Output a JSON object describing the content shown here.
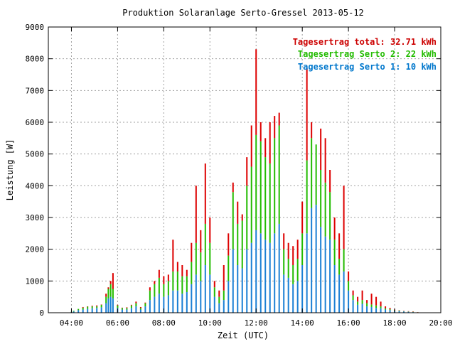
{
  "chart_data": {
    "type": "bar",
    "title": "Produktion Solaranlage Serto-Gressel 2013-05-12",
    "xlabel": "Zeit (UTC)",
    "ylabel": "Leistung [W]",
    "xlim": [
      3.0,
      20.0
    ],
    "ylim": [
      0,
      9000
    ],
    "x_ticks": [
      4,
      6,
      8,
      10,
      12,
      14,
      16,
      18,
      20
    ],
    "x_tick_labels": [
      "04:00",
      "06:00",
      "08:00",
      "10:00",
      "12:00",
      "14:00",
      "16:00",
      "18:00",
      "20:00"
    ],
    "y_ticks": [
      0,
      1000,
      2000,
      3000,
      4000,
      5000,
      6000,
      7000,
      8000,
      9000
    ],
    "y_tick_labels": [
      "0",
      "1000",
      "2000",
      "3000",
      "4000",
      "5000",
      "6000",
      "7000",
      "8000",
      "9000"
    ],
    "grid": true,
    "stacked": true,
    "legend_position": "top-right",
    "legend": [
      {
        "text": "Tagesertrag total: 32.71 kWh",
        "color": "#cc0000"
      },
      {
        "text": "Tagesertrag Serto 2: 22 kWh",
        "color": "#22bb00"
      },
      {
        "text": "Tagesertrag Serto 1: 10 kWh",
        "color": "#0077cc"
      }
    ],
    "series": [
      {
        "name": "Serto 1",
        "color": "#1a7fd4",
        "values": [
          [
            4.0,
            20
          ],
          [
            4.1,
            40
          ],
          [
            4.3,
            80
          ],
          [
            4.5,
            100
          ],
          [
            4.7,
            120
          ],
          [
            4.9,
            140
          ],
          [
            5.1,
            150
          ],
          [
            5.3,
            170
          ],
          [
            5.5,
            300
          ],
          [
            5.6,
            450
          ],
          [
            5.7,
            500
          ],
          [
            5.8,
            450
          ],
          [
            6.0,
            150
          ],
          [
            6.2,
            100
          ],
          [
            6.4,
            100
          ],
          [
            6.6,
            150
          ],
          [
            6.8,
            200
          ],
          [
            7.0,
            100
          ],
          [
            7.2,
            200
          ],
          [
            7.4,
            400
          ],
          [
            7.6,
            500
          ],
          [
            7.8,
            600
          ],
          [
            8.0,
            500
          ],
          [
            8.2,
            550
          ],
          [
            8.4,
            700
          ],
          [
            8.6,
            700
          ],
          [
            8.8,
            600
          ],
          [
            9.0,
            650
          ],
          [
            9.2,
            900
          ],
          [
            9.4,
            1200
          ],
          [
            9.6,
            1000
          ],
          [
            9.8,
            1500
          ],
          [
            10.0,
            1200
          ],
          [
            10.2,
            500
          ],
          [
            10.4,
            300
          ],
          [
            10.6,
            400
          ],
          [
            10.8,
            1000
          ],
          [
            11.0,
            2000
          ],
          [
            11.2,
            1500
          ],
          [
            11.4,
            1400
          ],
          [
            11.6,
            2000
          ],
          [
            11.8,
            2200
          ],
          [
            12.0,
            2600
          ],
          [
            12.2,
            2500
          ],
          [
            12.4,
            2300
          ],
          [
            12.6,
            2200
          ],
          [
            12.8,
            2500
          ],
          [
            13.0,
            2800
          ],
          [
            13.2,
            1200
          ],
          [
            13.4,
            1100
          ],
          [
            13.6,
            900
          ],
          [
            13.8,
            1000
          ],
          [
            14.0,
            1500
          ],
          [
            14.2,
            2500
          ],
          [
            14.4,
            3300
          ],
          [
            14.6,
            3400
          ],
          [
            14.8,
            2700
          ],
          [
            15.0,
            2400
          ],
          [
            15.2,
            2300
          ],
          [
            15.4,
            1500
          ],
          [
            15.6,
            1200
          ],
          [
            15.8,
            1300
          ],
          [
            16.0,
            700
          ],
          [
            16.2,
            400
          ],
          [
            16.4,
            250
          ],
          [
            16.6,
            280
          ],
          [
            16.8,
            200
          ],
          [
            17.0,
            180
          ],
          [
            17.2,
            150
          ],
          [
            17.4,
            140
          ],
          [
            17.6,
            100
          ],
          [
            17.8,
            80
          ],
          [
            18.0,
            60
          ],
          [
            18.2,
            50
          ],
          [
            18.4,
            40
          ],
          [
            18.6,
            30
          ],
          [
            18.8,
            20
          ],
          [
            19.0,
            10
          ]
        ]
      },
      {
        "name": "Serto 2",
        "color": "#22bb00",
        "values": [
          [
            4.0,
            10
          ],
          [
            4.1,
            20
          ],
          [
            4.3,
            40
          ],
          [
            4.5,
            60
          ],
          [
            4.7,
            70
          ],
          [
            4.9,
            60
          ],
          [
            5.1,
            50
          ],
          [
            5.3,
            80
          ],
          [
            5.5,
            200
          ],
          [
            5.6,
            300
          ],
          [
            5.7,
            400
          ],
          [
            5.8,
            300
          ],
          [
            6.0,
            80
          ],
          [
            6.2,
            50
          ],
          [
            6.4,
            50
          ],
          [
            6.6,
            80
          ],
          [
            6.8,
            100
          ],
          [
            7.0,
            50
          ],
          [
            7.2,
            100
          ],
          [
            7.4,
            300
          ],
          [
            7.6,
            400
          ],
          [
            7.8,
            500
          ],
          [
            8.0,
            400
          ],
          [
            8.2,
            450
          ],
          [
            8.4,
            600
          ],
          [
            8.6,
            600
          ],
          [
            8.8,
            550
          ],
          [
            9.0,
            500
          ],
          [
            9.2,
            700
          ],
          [
            9.4,
            1000
          ],
          [
            9.6,
            900
          ],
          [
            9.8,
            1300
          ],
          [
            10.0,
            1000
          ],
          [
            10.2,
            300
          ],
          [
            10.4,
            200
          ],
          [
            10.6,
            300
          ],
          [
            10.8,
            800
          ],
          [
            11.0,
            1800
          ],
          [
            11.2,
            1300
          ],
          [
            11.4,
            1500
          ],
          [
            11.6,
            2000
          ],
          [
            11.8,
            2400
          ],
          [
            12.0,
            3000
          ],
          [
            12.2,
            2900
          ],
          [
            12.4,
            2600
          ],
          [
            12.6,
            2500
          ],
          [
            12.8,
            3000
          ],
          [
            13.0,
            3100
          ],
          [
            13.2,
            800
          ],
          [
            13.4,
            600
          ],
          [
            13.6,
            600
          ],
          [
            13.8,
            700
          ],
          [
            14.0,
            1000
          ],
          [
            14.2,
            2300
          ],
          [
            14.4,
            2200
          ],
          [
            14.6,
            1900
          ],
          [
            14.8,
            1800
          ],
          [
            15.0,
            1700
          ],
          [
            15.2,
            1500
          ],
          [
            15.4,
            800
          ],
          [
            15.6,
            500
          ],
          [
            15.8,
            700
          ],
          [
            16.0,
            300
          ],
          [
            16.2,
            150
          ],
          [
            16.4,
            100
          ],
          [
            16.6,
            120
          ],
          [
            16.8,
            100
          ],
          [
            17.0,
            80
          ],
          [
            17.2,
            80
          ],
          [
            17.4,
            60
          ],
          [
            17.6,
            40
          ],
          [
            17.8,
            30
          ],
          [
            18.0,
            20
          ],
          [
            18.2,
            20
          ],
          [
            18.4,
            10
          ],
          [
            18.6,
            10
          ],
          [
            18.8,
            10
          ],
          [
            19.0,
            5
          ]
        ]
      },
      {
        "name": "Total",
        "color": "#dd0000",
        "values": [
          [
            4.0,
            30
          ],
          [
            4.1,
            60
          ],
          [
            4.3,
            120
          ],
          [
            4.5,
            180
          ],
          [
            4.7,
            200
          ],
          [
            4.9,
            220
          ],
          [
            5.1,
            230
          ],
          [
            5.3,
            260
          ],
          [
            5.5,
            600
          ],
          [
            5.6,
            800
          ],
          [
            5.7,
            1000
          ],
          [
            5.8,
            1250
          ],
          [
            6.0,
            250
          ],
          [
            6.2,
            160
          ],
          [
            6.4,
            170
          ],
          [
            6.6,
            250
          ],
          [
            6.8,
            350
          ],
          [
            7.0,
            180
          ],
          [
            7.2,
            320
          ],
          [
            7.4,
            800
          ],
          [
            7.6,
            1000
          ],
          [
            7.8,
            1350
          ],
          [
            8.0,
            1150
          ],
          [
            8.2,
            1200
          ],
          [
            8.4,
            2300
          ],
          [
            8.6,
            1600
          ],
          [
            8.8,
            1500
          ],
          [
            9.0,
            1350
          ],
          [
            9.2,
            2200
          ],
          [
            9.4,
            4000
          ],
          [
            9.6,
            2600
          ],
          [
            9.8,
            4700
          ],
          [
            10.0,
            3000
          ],
          [
            10.2,
            1000
          ],
          [
            10.4,
            700
          ],
          [
            10.6,
            1500
          ],
          [
            10.8,
            2500
          ],
          [
            11.0,
            4100
          ],
          [
            11.2,
            3500
          ],
          [
            11.4,
            3100
          ],
          [
            11.6,
            4900
          ],
          [
            11.8,
            5900
          ],
          [
            12.0,
            8300
          ],
          [
            12.2,
            6000
          ],
          [
            12.4,
            5500
          ],
          [
            12.6,
            6000
          ],
          [
            12.8,
            6200
          ],
          [
            13.0,
            6300
          ],
          [
            13.2,
            2500
          ],
          [
            13.4,
            2200
          ],
          [
            13.6,
            2100
          ],
          [
            13.8,
            2300
          ],
          [
            14.0,
            3500
          ],
          [
            14.2,
            7700
          ],
          [
            14.4,
            6000
          ],
          [
            14.6,
            5200
          ],
          [
            14.8,
            5800
          ],
          [
            15.0,
            5500
          ],
          [
            15.2,
            4500
          ],
          [
            15.4,
            3000
          ],
          [
            15.6,
            2500
          ],
          [
            15.8,
            4000
          ],
          [
            16.0,
            1300
          ],
          [
            16.2,
            700
          ],
          [
            16.4,
            500
          ],
          [
            16.6,
            700
          ],
          [
            16.8,
            400
          ],
          [
            17.0,
            600
          ],
          [
            17.2,
            500
          ],
          [
            17.4,
            350
          ],
          [
            17.6,
            200
          ],
          [
            17.8,
            150
          ],
          [
            18.0,
            100
          ],
          [
            18.2,
            80
          ],
          [
            18.4,
            60
          ],
          [
            18.6,
            50
          ],
          [
            18.8,
            40
          ],
          [
            19.0,
            20
          ]
        ]
      }
    ]
  }
}
